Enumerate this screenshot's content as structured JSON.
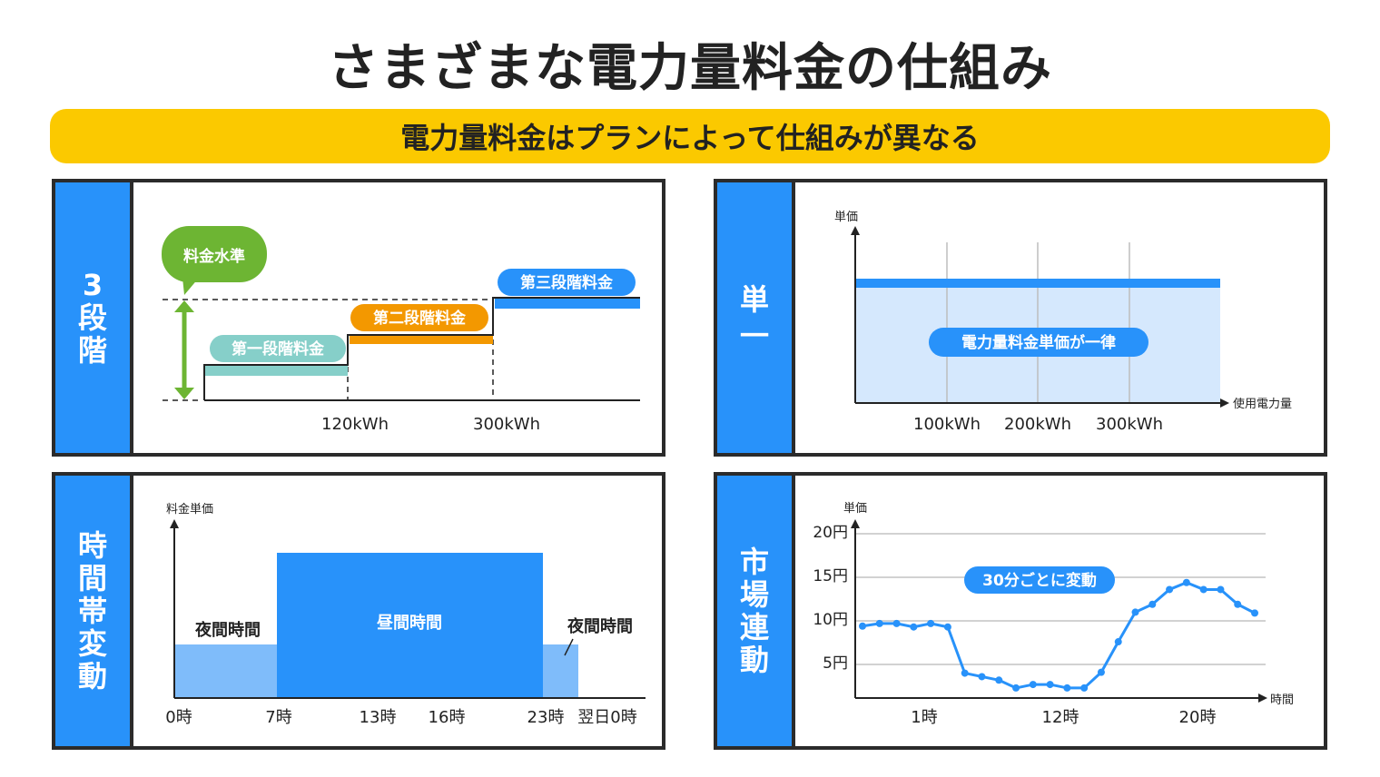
{
  "header": {
    "title": "さまざまな電力量料金の仕組み",
    "subtitle": "電力量料金はプランによって仕組みが異なる"
  },
  "colors": {
    "accent_blue": "#2892fa",
    "light_blue": "#d5e8fd",
    "mid_blue": "#7fbcfa",
    "yellow": "#fbc900",
    "green": "#6db533",
    "teal": "#86cfc9",
    "orange": "#f39800",
    "border": "#2b2b2b"
  },
  "panels": {
    "tiered": {
      "label_chars": [
        "3",
        "段",
        "階"
      ],
      "bubble": "料金水準",
      "tier1": "第一段階料金",
      "tier2": "第二段階料金",
      "tier3": "第三段階料金",
      "x_ticks": [
        "120kWh",
        "300kWh"
      ]
    },
    "flat": {
      "label_chars": [
        "単",
        "一"
      ],
      "y_axis": "単価",
      "x_axis": "使用電力量",
      "badge": "電力量料金単価が一律",
      "x_ticks": [
        "100kWh",
        "200kWh",
        "300kWh"
      ]
    },
    "time_of_use": {
      "label_chars": [
        "時",
        "間",
        "帯",
        "変",
        "動"
      ],
      "y_axis": "料金単価",
      "night_label_left": "夜間時間",
      "day_label": "昼間時間",
      "night_label_right": "夜間時間",
      "x_ticks": [
        "0時",
        "7時",
        "13時",
        "16時",
        "23時",
        "翌日0時"
      ]
    },
    "market": {
      "label_chars": [
        "市",
        "場",
        "連",
        "動"
      ],
      "y_axis": "単価",
      "x_axis": "時間",
      "badge": "30分ごとに変動",
      "y_ticks": [
        "20円",
        "15円",
        "10円",
        "5円"
      ],
      "x_ticks": [
        "1時",
        "12時",
        "20時"
      ]
    }
  },
  "chart_data": [
    {
      "type": "step",
      "title": "3段階",
      "xlabel": "",
      "ylabel": "料金水準",
      "categories": [
        "第一段階料金",
        "第二段階料金",
        "第三段階料金"
      ],
      "x_breaks": [
        "120kWh",
        "300kWh"
      ],
      "values": [
        1,
        2,
        3
      ],
      "colors": [
        "#86cfc9",
        "#f39800",
        "#2892fa"
      ]
    },
    {
      "type": "area",
      "title": "単一",
      "xlabel": "使用電力量",
      "ylabel": "単価",
      "categories": [
        "100kWh",
        "200kWh",
        "300kWh"
      ],
      "values": [
        1,
        1,
        1
      ],
      "annotation": "電力量料金単価が一律"
    },
    {
      "type": "bar",
      "title": "時間帯変動",
      "xlabel": "",
      "ylabel": "料金単価",
      "segments": [
        {
          "from": "0時",
          "to": "7時",
          "label": "夜間時間",
          "level": "low"
        },
        {
          "from": "7時",
          "to": "23時",
          "label": "昼間時間",
          "level": "high"
        },
        {
          "from": "23時",
          "to": "翌日0時",
          "label": "夜間時間",
          "level": "low"
        }
      ],
      "x_ticks": [
        "0時",
        "7時",
        "13時",
        "16時",
        "23時",
        "翌日0時"
      ]
    },
    {
      "type": "line",
      "title": "市場連動",
      "xlabel": "時間",
      "ylabel": "単価",
      "ylim": [
        0,
        20
      ],
      "y_ticks": [
        5,
        10,
        15,
        20
      ],
      "x_ticks": [
        "1時",
        "12時",
        "20時"
      ],
      "grid": true,
      "annotation": "30分ごとに変動",
      "series": [
        {
          "name": "単価",
          "values": [
            9.4,
            9.7,
            9.7,
            9.3,
            9.7,
            9.3,
            4.0,
            3.6,
            3.2,
            2.3,
            2.7,
            2.7,
            2.3,
            2.3,
            4.1,
            7.6,
            11.0,
            11.9,
            13.6,
            14.4,
            13.6,
            13.6,
            11.9,
            10.9
          ]
        }
      ]
    }
  ]
}
